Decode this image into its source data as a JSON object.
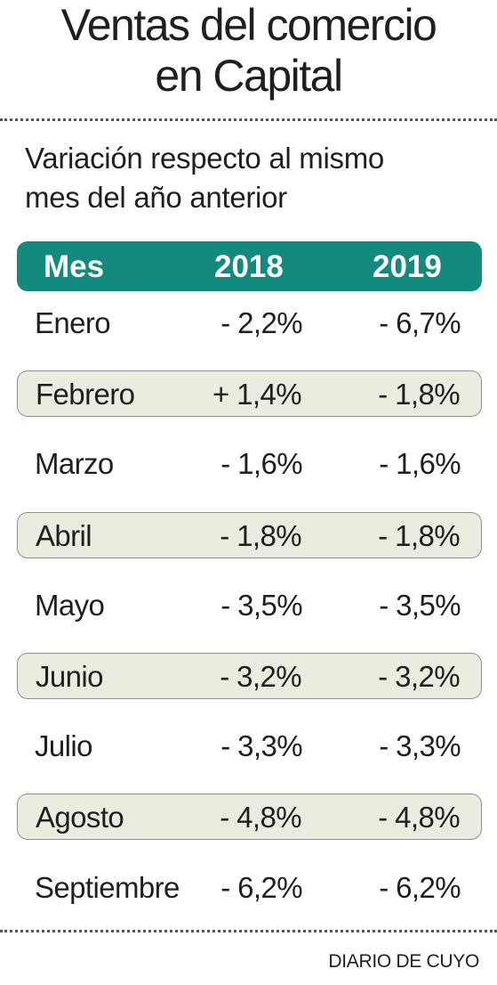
{
  "title_lines": [
    "Ventas del comercio",
    "en Capital"
  ],
  "subtitle_lines": [
    "Variación respecto al mismo",
    "mes del año anterior"
  ],
  "source": "DIARIO DE CUYO",
  "colors": {
    "header_bg": "#138a7e",
    "header_text": "#ffffff",
    "shaded_row_bg": "#ecebdf",
    "text": "#1f1f1f"
  },
  "chart_data": {
    "type": "table",
    "title": "Ventas del comercio en Capital",
    "subtitle": "Variación respecto al mismo mes del año anterior",
    "columns": [
      "Mes",
      "2018",
      "2019"
    ],
    "rows": [
      {
        "mes": "Enero",
        "y2018": "- 2,2%",
        "y2019": "- 6,7%"
      },
      {
        "mes": "Febrero",
        "y2018": "+ 1,4%",
        "y2019": "- 1,8%"
      },
      {
        "mes": "Marzo",
        "y2018": "- 1,6%",
        "y2019": "- 1,6%"
      },
      {
        "mes": "Abril",
        "y2018": "- 1,8%",
        "y2019": "- 1,8%"
      },
      {
        "mes": "Mayo",
        "y2018": "- 3,5%",
        "y2019": "- 3,5%"
      },
      {
        "mes": "Junio",
        "y2018": "- 3,2%",
        "y2019": "- 3,2%"
      },
      {
        "mes": "Julio",
        "y2018": "- 3,3%",
        "y2019": "- 3,3%"
      },
      {
        "mes": "Agosto",
        "y2018": "- 4,8%",
        "y2019": "- 4,8%"
      },
      {
        "mes": "Septiembre",
        "y2018": "- 6,2%",
        "y2019": "- 6,2%"
      }
    ]
  }
}
